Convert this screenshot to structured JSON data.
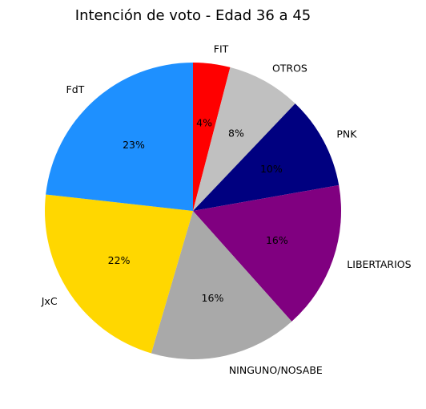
{
  "chart_data": {
    "type": "pie",
    "title": "Intención de voto - Edad 36 a 45",
    "start_angle_deg": 90,
    "direction": "clockwise",
    "slices": [
      {
        "label": "FIT",
        "value": 4,
        "pct_label": "4%",
        "color": "#ff0000"
      },
      {
        "label": "OTROS",
        "value": 8,
        "pct_label": "8%",
        "color": "#c0c0c0"
      },
      {
        "label": "PNK",
        "value": 10,
        "pct_label": "10%",
        "color": "#000080"
      },
      {
        "label": "LIBERTARIOS",
        "value": 16,
        "pct_label": "16%",
        "color": "#800080"
      },
      {
        "label": "NINGUNO/NOSABE",
        "value": 16,
        "pct_label": "16%",
        "color": "#a9a9a9"
      },
      {
        "label": "JxC",
        "value": 22,
        "pct_label": "22%",
        "color": "#ffd700"
      },
      {
        "label": "FdT",
        "value": 23,
        "pct_label": "23%",
        "color": "#1e90ff"
      }
    ]
  }
}
